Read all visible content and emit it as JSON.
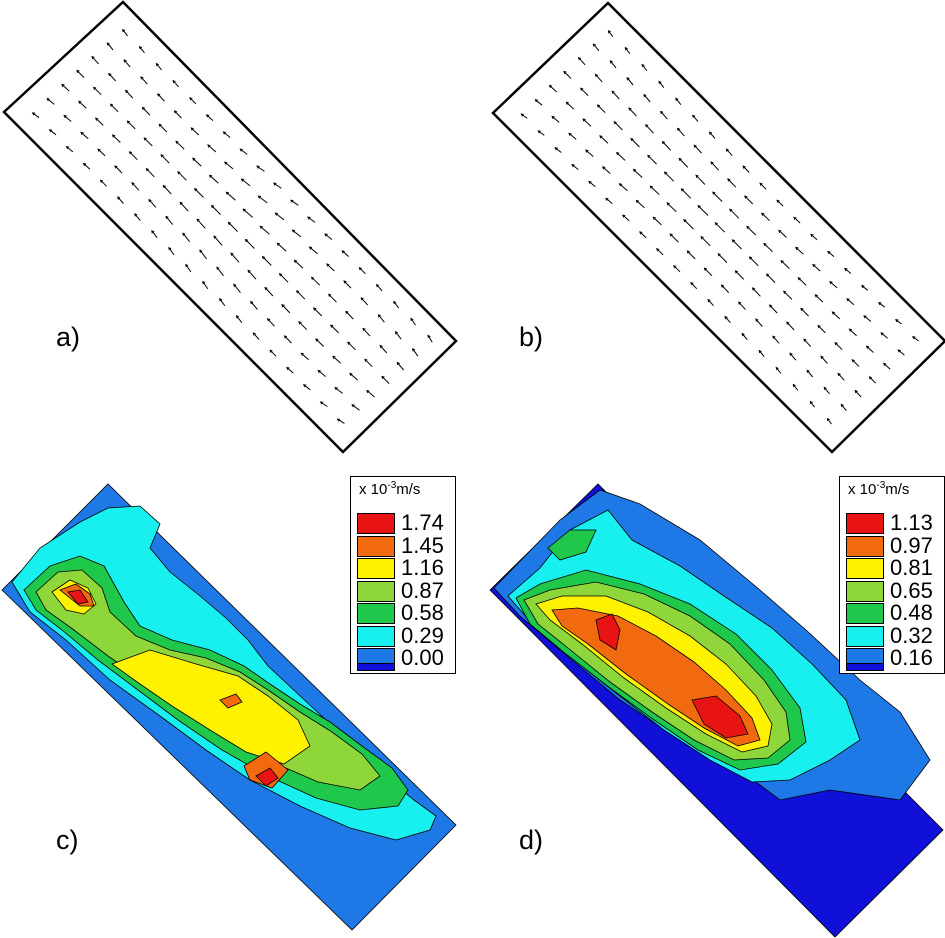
{
  "panels": {
    "a": {
      "label": "a)"
    },
    "b": {
      "label": "b)"
    },
    "c": {
      "label": "c)"
    },
    "d": {
      "label": "d)"
    }
  },
  "legend_c": {
    "title_prefix": "x 10",
    "title_exp": "-3",
    "title_unit": "m/s",
    "levels": [
      {
        "value": "1.74",
        "color": "#e81414"
      },
      {
        "value": "1.45",
        "color": "#f26a10"
      },
      {
        "value": "1.16",
        "color": "#fff200"
      },
      {
        "value": "0.87",
        "color": "#8fd63a"
      },
      {
        "value": "0.58",
        "color": "#1fc84a"
      },
      {
        "value": "0.29",
        "color": "#18f0f0"
      },
      {
        "value": "0.00",
        "color": "#1e78e6"
      }
    ],
    "bottom_color": "#1010d8"
  },
  "legend_d": {
    "title_prefix": "x 10",
    "title_exp": "-3",
    "title_unit": "m/s",
    "levels": [
      {
        "value": "1.13",
        "color": "#e81414"
      },
      {
        "value": "0.97",
        "color": "#f26a10"
      },
      {
        "value": "0.81",
        "color": "#fff200"
      },
      {
        "value": "0.65",
        "color": "#8fd63a"
      },
      {
        "value": "0.48",
        "color": "#1fc84a"
      },
      {
        "value": "0.32",
        "color": "#18f0f0"
      },
      {
        "value": "0.16",
        "color": "#1e78e6"
      }
    ],
    "bottom_color": "#1010d8"
  }
}
